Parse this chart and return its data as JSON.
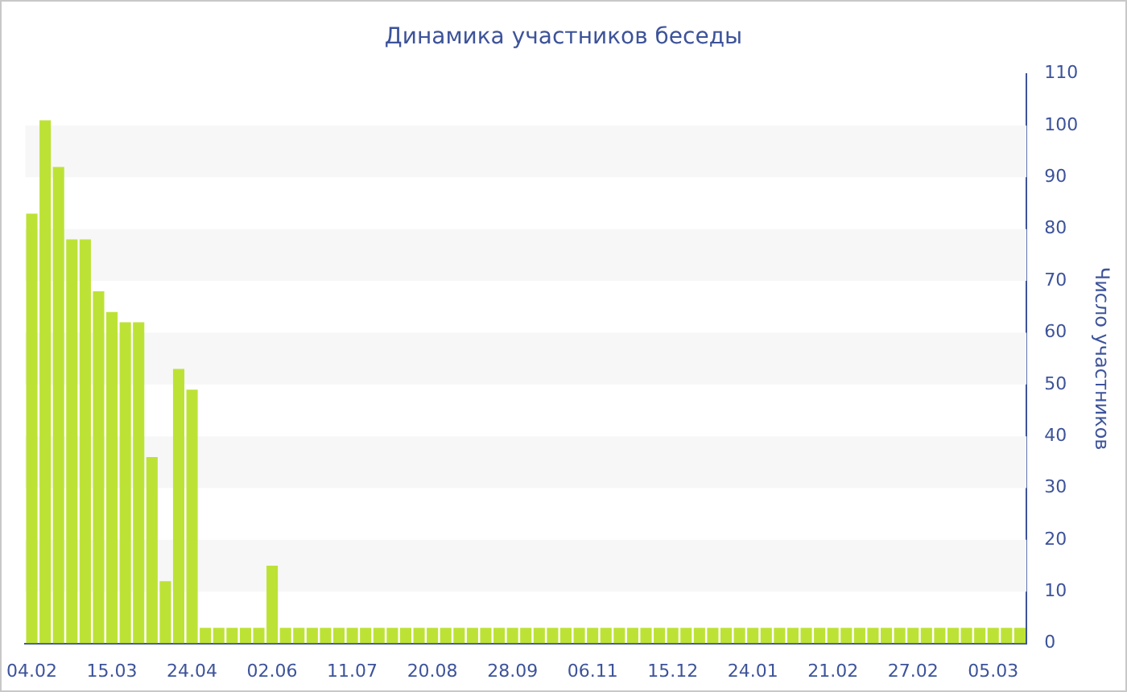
{
  "chart_data": {
    "type": "bar",
    "title": "Динамика участников беседы",
    "ylabel": "Число участников",
    "categories": [
      "04.02",
      null,
      null,
      null,
      null,
      null,
      "15.03",
      null,
      null,
      null,
      null,
      null,
      "24.04",
      null,
      null,
      null,
      null,
      null,
      "02.06",
      null,
      null,
      null,
      null,
      null,
      "11.07",
      null,
      null,
      null,
      null,
      null,
      "20.08",
      null,
      null,
      null,
      null,
      null,
      "28.09",
      null,
      null,
      null,
      null,
      null,
      "06.11",
      null,
      null,
      null,
      null,
      null,
      "15.12",
      null,
      null,
      null,
      null,
      null,
      "24.01",
      null,
      null,
      null,
      null,
      null,
      "21.02",
      null,
      null,
      null,
      null,
      null,
      "27.02",
      null,
      null,
      null,
      null,
      null,
      "05.03",
      null,
      null
    ],
    "values": [
      83,
      101,
      92,
      78,
      78,
      68,
      64,
      62,
      62,
      36,
      12,
      53,
      49,
      3,
      3,
      3,
      3,
      3,
      15,
      3,
      3,
      3,
      3,
      3,
      3,
      3,
      3,
      3,
      3,
      3,
      3,
      3,
      3,
      3,
      3,
      3,
      3,
      3,
      3,
      3,
      3,
      3,
      3,
      3,
      3,
      3,
      3,
      3,
      3,
      3,
      3,
      3,
      3,
      3,
      3,
      3,
      3,
      3,
      3,
      3,
      3,
      3,
      3,
      3,
      3,
      3,
      3,
      3,
      3,
      3,
      3,
      3,
      3,
      3,
      3
    ],
    "color": "#bde236",
    "ylim": [
      0,
      110
    ],
    "yticks": [
      0,
      10,
      20,
      30,
      40,
      50,
      60,
      70,
      80,
      90,
      100,
      110
    ],
    "bands": [
      {
        "axis": "y",
        "from": 10,
        "to": 20,
        "color": "#f7f7f7"
      },
      {
        "axis": "y",
        "from": 30,
        "to": 40,
        "color": "#f7f7f7"
      },
      {
        "axis": "y",
        "from": 50,
        "to": 60,
        "color": "#f7f7f7"
      },
      {
        "axis": "y",
        "from": 70,
        "to": 80,
        "color": "#f7f7f7"
      },
      {
        "axis": "y",
        "from": 90,
        "to": 100,
        "color": "#f7f7f7"
      }
    ],
    "legend": false
  }
}
